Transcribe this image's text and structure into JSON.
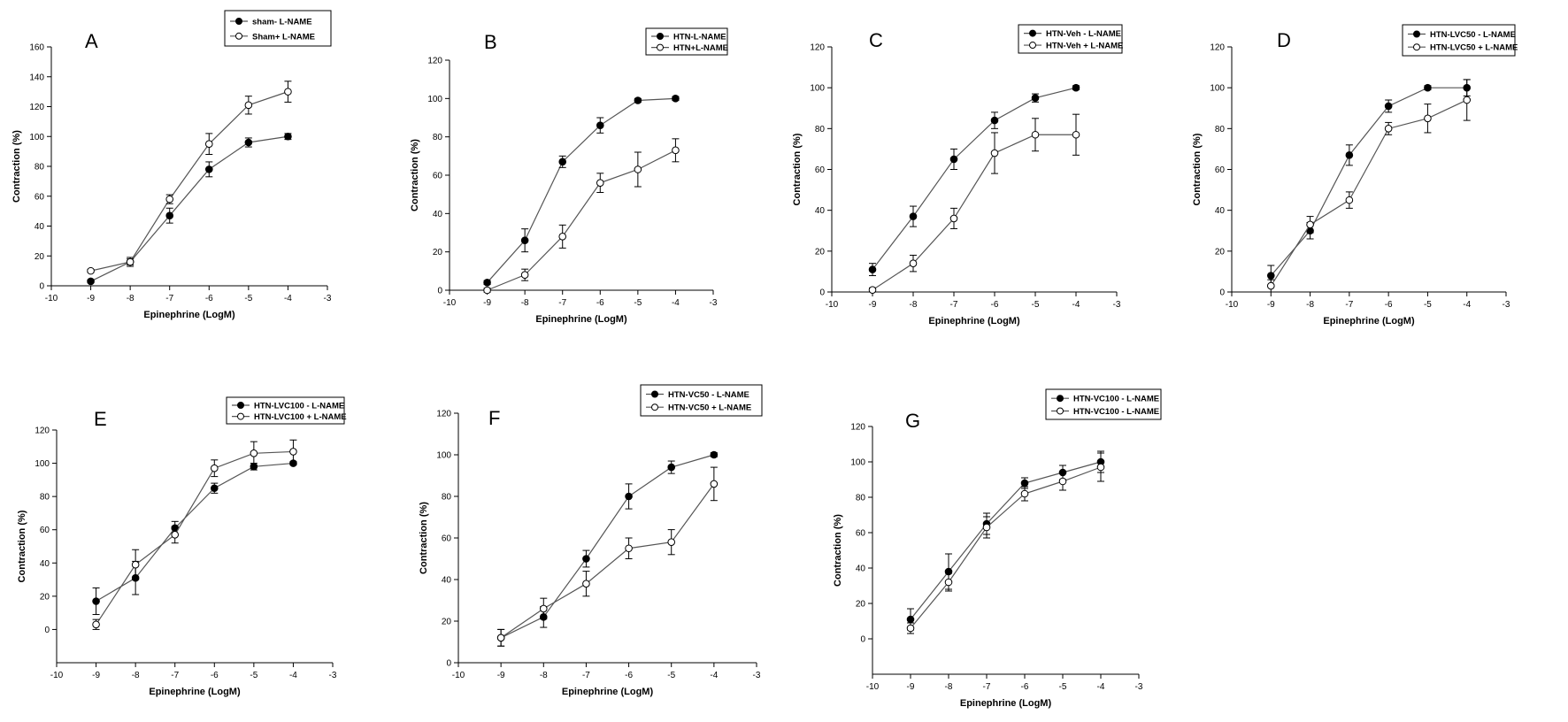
{
  "chart_data": [
    {
      "type": "line",
      "panel": "A",
      "xlabel": "Epinephrine (LogM)",
      "ylabel": "Contraction (%)",
      "xlim": [
        -10,
        -3
      ],
      "ylim": [
        0,
        160
      ],
      "y_ticks": [
        0,
        20,
        40,
        60,
        80,
        100,
        120,
        140,
        160
      ],
      "x_ticks": [
        -10,
        -9,
        -8,
        -7,
        -6,
        -5,
        -4,
        -3
      ],
      "legend_position": "top-right",
      "series": [
        {
          "name": "sham- L-NAME",
          "marker": "filled",
          "x": [
            -9,
            -8,
            -7,
            -6,
            -5,
            -4
          ],
          "y": [
            3,
            16,
            47,
            78,
            96,
            100
          ],
          "err": [
            1,
            3,
            5,
            5,
            3,
            2
          ]
        },
        {
          "name": "Sham+ L-NAME",
          "marker": "open",
          "x": [
            -9,
            -8,
            -7,
            -6,
            -5,
            -4
          ],
          "y": [
            10,
            16,
            58,
            95,
            121,
            130
          ],
          "err": [
            1,
            2,
            3,
            7,
            6,
            7
          ]
        }
      ]
    },
    {
      "type": "line",
      "panel": "B",
      "xlabel": "Epinephrine (LogM)",
      "ylabel": "Contraction (%)",
      "xlim": [
        -10,
        -3
      ],
      "ylim": [
        0,
        120
      ],
      "y_ticks": [
        0,
        20,
        40,
        60,
        80,
        100,
        120
      ],
      "x_ticks": [
        -10,
        -9,
        -8,
        -7,
        -6,
        -5,
        -4,
        -3
      ],
      "legend_position": "top-right",
      "series": [
        {
          "name": "HTN-L-NAME",
          "marker": "filled",
          "x": [
            -9,
            -8,
            -7,
            -6,
            -5,
            -4
          ],
          "y": [
            4,
            26,
            67,
            86,
            99,
            100
          ],
          "err": [
            1,
            6,
            3,
            4,
            1,
            1
          ]
        },
        {
          "name": "HTN+L-NAME",
          "marker": "open",
          "x": [
            -9,
            -8,
            -7,
            -6,
            -5,
            -4
          ],
          "y": [
            0,
            8,
            28,
            56,
            63,
            73
          ],
          "err": [
            1,
            3,
            6,
            5,
            9,
            6
          ]
        }
      ]
    },
    {
      "type": "line",
      "panel": "C",
      "xlabel": "Epinephrine (LogM)",
      "ylabel": "Contraction (%)",
      "xlim": [
        -10,
        -3
      ],
      "ylim": [
        0,
        120
      ],
      "y_ticks": [
        0,
        20,
        40,
        60,
        80,
        100,
        120
      ],
      "x_ticks": [
        -10,
        -9,
        -8,
        -7,
        -6,
        -5,
        -4,
        -3
      ],
      "legend_position": "top-right",
      "series": [
        {
          "name": "HTN-Veh - L-NAME",
          "marker": "filled",
          "x": [
            -9,
            -8,
            -7,
            -6,
            -5,
            -4
          ],
          "y": [
            11,
            37,
            65,
            84,
            95,
            100
          ],
          "err": [
            3,
            5,
            5,
            4,
            2,
            1
          ]
        },
        {
          "name": "HTN-Veh + L-NAME",
          "marker": "open",
          "x": [
            -9,
            -8,
            -7,
            -6,
            -5,
            -4
          ],
          "y": [
            1,
            14,
            36,
            68,
            77,
            77
          ],
          "err": [
            1,
            4,
            5,
            10,
            8,
            10
          ]
        }
      ]
    },
    {
      "type": "line",
      "panel": "D",
      "xlabel": "Epinephrine (LogM)",
      "ylabel": "Contraction (%)",
      "xlim": [
        -10,
        -3
      ],
      "ylim": [
        0,
        120
      ],
      "y_ticks": [
        0,
        20,
        40,
        60,
        80,
        100,
        120
      ],
      "x_ticks": [
        -10,
        -9,
        -8,
        -7,
        -6,
        -5,
        -4,
        -3
      ],
      "legend_position": "top-right",
      "series": [
        {
          "name": "HTN-LVC50 - L-NAME",
          "marker": "filled",
          "x": [
            -9,
            -8,
            -7,
            -6,
            -5,
            -4
          ],
          "y": [
            8,
            30,
            67,
            91,
            100,
            100
          ],
          "err": [
            5,
            4,
            5,
            3,
            1,
            4
          ]
        },
        {
          "name": "HTN-LVC50 + L-NAME",
          "marker": "open",
          "x": [
            -9,
            -8,
            -7,
            -6,
            -5,
            -4
          ],
          "y": [
            3,
            33,
            45,
            80,
            85,
            94
          ],
          "err": [
            3,
            4,
            4,
            3,
            7,
            10
          ]
        }
      ]
    },
    {
      "type": "line",
      "panel": "E",
      "xlabel": "Epinephrine (LogM)",
      "ylabel": "Contraction (%)",
      "xlim": [
        -10,
        -3
      ],
      "ylim": [
        -20,
        120
      ],
      "y_ticks": [
        0,
        20,
        40,
        60,
        80,
        100,
        120
      ],
      "x_ticks": [
        -10,
        -9,
        -8,
        -7,
        -6,
        -5,
        -4,
        -3
      ],
      "legend_position": "top-right",
      "series": [
        {
          "name": "HTN-LVC100 - L-NAME",
          "marker": "filled",
          "x": [
            -9,
            -8,
            -7,
            -6,
            -5,
            -4
          ],
          "y": [
            17,
            31,
            61,
            85,
            98,
            100
          ],
          "err": [
            8,
            10,
            4,
            3,
            2,
            1
          ]
        },
        {
          "name": "HTN-LVC100 + L-NAME",
          "marker": "open",
          "x": [
            -9,
            -8,
            -7,
            -6,
            -5,
            -4
          ],
          "y": [
            3,
            39,
            57,
            97,
            106,
            107
          ],
          "err": [
            3,
            9,
            5,
            5,
            7,
            7
          ]
        }
      ]
    },
    {
      "type": "line",
      "panel": "F",
      "xlabel": "Epinephrine (LogM)",
      "ylabel": "Contraction (%)",
      "xlim": [
        -10,
        -3
      ],
      "ylim": [
        0,
        120
      ],
      "y_ticks": [
        0,
        20,
        40,
        60,
        80,
        100,
        120
      ],
      "x_ticks": [
        -10,
        -9,
        -8,
        -7,
        -6,
        -5,
        -4,
        -3
      ],
      "legend_position": "top-right",
      "series": [
        {
          "name": "HTN-VC50 - L-NAME",
          "marker": "filled",
          "x": [
            -9,
            -8,
            -7,
            -6,
            -5,
            -4
          ],
          "y": [
            12,
            22,
            50,
            80,
            94,
            100
          ],
          "err": [
            4,
            5,
            4,
            6,
            3,
            1
          ]
        },
        {
          "name": "HTN-VC50 + L-NAME",
          "marker": "open",
          "x": [
            -9,
            -8,
            -7,
            -6,
            -5,
            -4
          ],
          "y": [
            12,
            26,
            38,
            55,
            58,
            86
          ],
          "err": [
            4,
            5,
            6,
            5,
            6,
            8
          ]
        }
      ]
    },
    {
      "type": "line",
      "panel": "G",
      "xlabel": "Epinephrine (LogM)",
      "ylabel": "Contraction (%)",
      "xlim": [
        -10,
        -3
      ],
      "ylim": [
        -20,
        120
      ],
      "y_ticks": [
        0,
        20,
        40,
        60,
        80,
        100,
        120
      ],
      "x_ticks": [
        -10,
        -9,
        -8,
        -7,
        -6,
        -5,
        -4,
        -3
      ],
      "legend_position": "top-left",
      "series": [
        {
          "name": "HTN-VC100 - L-NAME",
          "marker": "filled",
          "x": [
            -9,
            -8,
            -7,
            -6,
            -5,
            -4
          ],
          "y": [
            11,
            38,
            65,
            88,
            94,
            100
          ],
          "err": [
            6,
            10,
            6,
            3,
            4,
            6
          ]
        },
        {
          "name": "HTN-VC100 - L-NAME",
          "marker": "open",
          "x": [
            -9,
            -8,
            -7,
            -6,
            -5,
            -4
          ],
          "y": [
            6,
            32,
            63,
            82,
            89,
            97
          ],
          "err": [
            3,
            5,
            6,
            4,
            5,
            8
          ]
        }
      ]
    }
  ]
}
